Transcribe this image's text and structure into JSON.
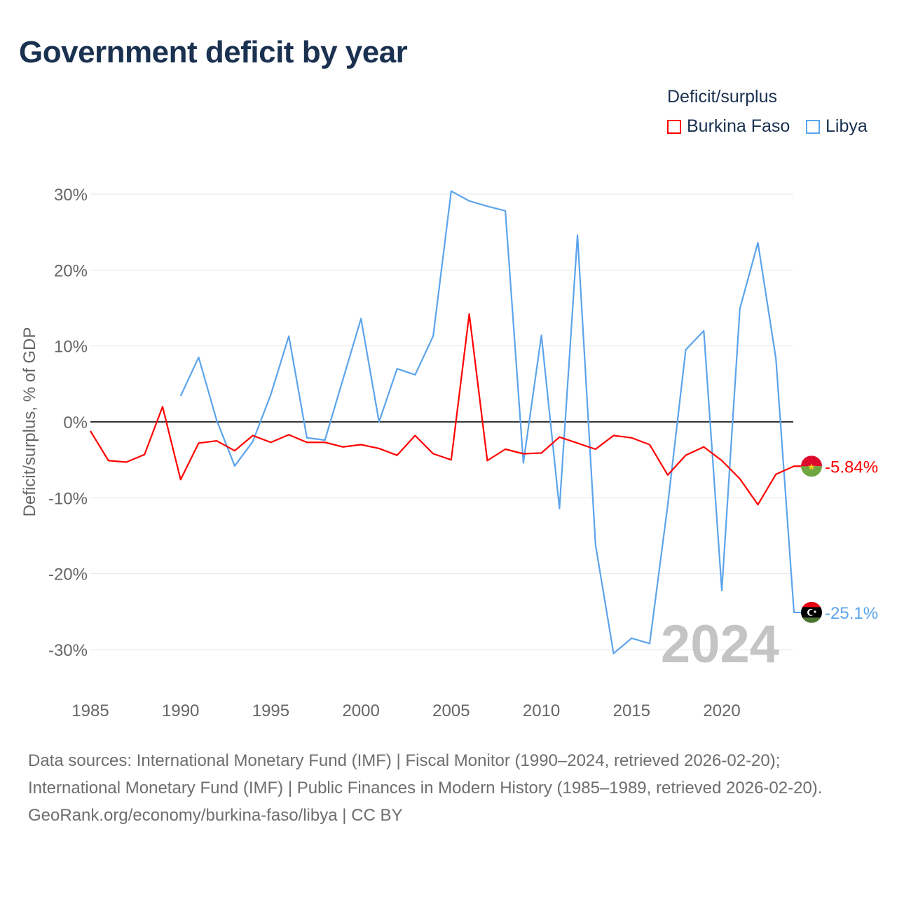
{
  "title": "Government deficit by year",
  "legend": {
    "title": "Deficit/surplus",
    "items": [
      {
        "name": "Burkina Faso",
        "color": "#ff0000"
      },
      {
        "name": "Libya",
        "color": "#5ba4ec"
      }
    ]
  },
  "year_watermark": "2024",
  "footer": {
    "sources": "Data sources: International Monetary Fund (IMF) | Fiscal Monitor (1990–2024, retrieved 2026-02-20); International Monetary Fund (IMF) | Public Finances in Modern History (1985–1989, retrieved 2026-02-20).",
    "credit": "GeoRank.org/economy/burkina-faso/libya | CC BY"
  },
  "chart_data": {
    "type": "line",
    "title": "Government deficit by year",
    "xlabel": "",
    "ylabel": "Deficit/surplus, % of GDP",
    "xlim": [
      1985,
      2024
    ],
    "ylim": [
      -35,
      33
    ],
    "x_ticks": [
      1985,
      1990,
      1995,
      2000,
      2005,
      2010,
      2015,
      2020
    ],
    "y_ticks": [
      30,
      20,
      10,
      0,
      -10,
      -20,
      -30
    ],
    "y_tick_labels": [
      "30%",
      "20%",
      "10%",
      "0%",
      "-10%",
      "-20%",
      "-30%"
    ],
    "grid": true,
    "legend_position": "top-right",
    "series": [
      {
        "name": "Burkina Faso",
        "color": "#ff0000",
        "start": 1985,
        "end_label": "-5.84%",
        "flag": "burkina-faso",
        "values": [
          -1.2,
          -5.1,
          -5.3,
          -4.3,
          2.0,
          -7.6,
          -2.8,
          -2.5,
          -3.8,
          -1.8,
          -2.7,
          -1.7,
          -2.7,
          -2.7,
          -3.3,
          -3.0,
          -3.5,
          -4.4,
          -1.8,
          -4.2,
          -5.0,
          14.2,
          -5.1,
          -3.6,
          -4.2,
          -4.1,
          -2.0,
          -2.8,
          -3.6,
          -1.8,
          -2.1,
          -3.0,
          -7.0,
          -4.4,
          -3.3,
          -5.1,
          -7.5,
          -10.9,
          -6.9,
          -5.84
        ]
      },
      {
        "name": "Libya",
        "color": "#5ba4ec",
        "start": 1990,
        "end_label": "-25.1%",
        "flag": "libya",
        "values": [
          3.4,
          8.5,
          0.2,
          -5.8,
          -2.6,
          3.6,
          11.3,
          -2.1,
          -2.4,
          5.6,
          13.6,
          0.0,
          7.0,
          6.2,
          11.3,
          30.4,
          29.1,
          28.4,
          27.8,
          -5.4,
          11.4,
          -11.4,
          24.6,
          -16.2,
          -30.5,
          -28.5,
          -29.2,
          -11.0,
          9.5,
          12.0,
          -22.2,
          14.9,
          23.6,
          8.3,
          -25.1
        ]
      }
    ]
  }
}
